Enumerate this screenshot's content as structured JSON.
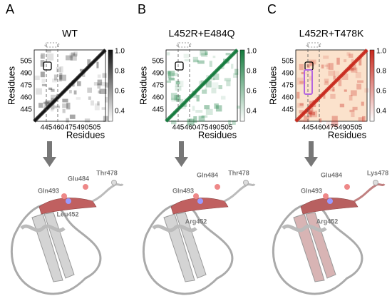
{
  "panels": [
    {
      "label": "A",
      "title": "WT",
      "y_axis_label": "Residues",
      "x_axis_label": "Residues",
      "y_ticks": [
        "505",
        "490",
        "475",
        "460",
        "445"
      ],
      "x_ticks": [
        "445",
        "460",
        "475",
        "490",
        "505"
      ],
      "colorbar_ticks": [
        "1.0",
        "0.8",
        "0.6",
        "0.4"
      ],
      "color": "#111111",
      "highlight": "#c06060",
      "residues": [
        "Glu484",
        "Thr478",
        "Gln493",
        "Leu452"
      ]
    },
    {
      "label": "B",
      "title": "L452R+E484Q",
      "y_axis_label": "Residues",
      "x_axis_label": "Residues",
      "y_ticks": [
        "505",
        "490",
        "475",
        "460",
        "445"
      ],
      "x_ticks": [
        "445",
        "460",
        "475",
        "490",
        "505"
      ],
      "colorbar_ticks": [
        "1.0",
        "0.8",
        "0.6",
        "0.4"
      ],
      "color": "#137a3c",
      "highlight": "#c06060",
      "residues": [
        "Gln484",
        "Thr478",
        "Gln493",
        "Arg452"
      ]
    },
    {
      "label": "C",
      "title": "L452R+T478K",
      "y_axis_label": "Residues",
      "x_axis_label": "Residues",
      "y_ticks": [
        "505",
        "490",
        "475",
        "460",
        "445"
      ],
      "x_ticks": [
        "445",
        "460",
        "475",
        "490",
        "505"
      ],
      "colorbar_ticks": [
        "1.0",
        "0.8",
        "0.6",
        "0.4"
      ],
      "color": "#c8281c",
      "highlight": "#b86060",
      "residues": [
        "Glu484",
        "Lys478",
        "Gln493",
        "Arg452"
      ]
    }
  ]
}
